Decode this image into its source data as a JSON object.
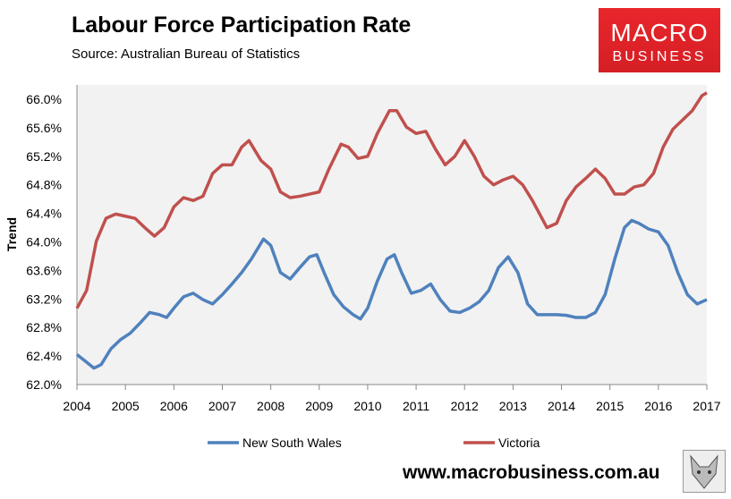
{
  "header": {
    "title": "Labour Force Participation Rate",
    "source": "Source: Australian Bureau of Statistics"
  },
  "logo": {
    "line1": "MACRO",
    "line2": "BUSINESS",
    "icon": "fox-icon"
  },
  "footer": {
    "url": "www.macrobusiness.com.au"
  },
  "chart_data": {
    "type": "line",
    "title": "Labour Force Participation Rate",
    "xlabel": "",
    "ylabel": "Trend",
    "ylim": [
      62.0,
      66.2
    ],
    "xlim": [
      2004,
      2017
    ],
    "yticks": [
      "62.0%",
      "62.4%",
      "62.8%",
      "63.2%",
      "63.6%",
      "64.0%",
      "64.4%",
      "64.8%",
      "65.2%",
      "65.6%",
      "66.0%"
    ],
    "xticks": [
      "2004",
      "2005",
      "2006",
      "2007",
      "2008",
      "2009",
      "2010",
      "2011",
      "2012",
      "2013",
      "2014",
      "2015",
      "2016",
      "2017"
    ],
    "legend": "bottom",
    "grid": false,
    "series": [
      {
        "name": "New South Wales",
        "color": "#4f81bd",
        "points": [
          [
            2004.0,
            62.42
          ],
          [
            2004.15,
            62.34
          ],
          [
            2004.35,
            62.23
          ],
          [
            2004.5,
            62.28
          ],
          [
            2004.7,
            62.5
          ],
          [
            2004.9,
            62.63
          ],
          [
            2005.1,
            62.72
          ],
          [
            2005.3,
            62.86
          ],
          [
            2005.5,
            63.01
          ],
          [
            2005.7,
            62.98
          ],
          [
            2005.85,
            62.94
          ],
          [
            2006.0,
            63.07
          ],
          [
            2006.2,
            63.23
          ],
          [
            2006.4,
            63.28
          ],
          [
            2006.6,
            63.19
          ],
          [
            2006.8,
            63.13
          ],
          [
            2007.0,
            63.26
          ],
          [
            2007.2,
            63.41
          ],
          [
            2007.4,
            63.57
          ],
          [
            2007.6,
            63.76
          ],
          [
            2007.85,
            64.04
          ],
          [
            2008.0,
            63.95
          ],
          [
            2008.2,
            63.57
          ],
          [
            2008.4,
            63.48
          ],
          [
            2008.6,
            63.64
          ],
          [
            2008.8,
            63.79
          ],
          [
            2008.95,
            63.82
          ],
          [
            2009.1,
            63.57
          ],
          [
            2009.3,
            63.26
          ],
          [
            2009.5,
            63.09
          ],
          [
            2009.7,
            62.98
          ],
          [
            2009.85,
            62.92
          ],
          [
            2010.0,
            63.07
          ],
          [
            2010.2,
            63.45
          ],
          [
            2010.4,
            63.76
          ],
          [
            2010.55,
            63.82
          ],
          [
            2010.7,
            63.57
          ],
          [
            2010.9,
            63.28
          ],
          [
            2011.1,
            63.32
          ],
          [
            2011.3,
            63.41
          ],
          [
            2011.5,
            63.19
          ],
          [
            2011.7,
            63.03
          ],
          [
            2011.9,
            63.01
          ],
          [
            2012.1,
            63.07
          ],
          [
            2012.3,
            63.16
          ],
          [
            2012.5,
            63.32
          ],
          [
            2012.7,
            63.64
          ],
          [
            2012.9,
            63.79
          ],
          [
            2013.1,
            63.57
          ],
          [
            2013.3,
            63.13
          ],
          [
            2013.5,
            62.98
          ],
          [
            2013.7,
            62.98
          ],
          [
            2013.9,
            62.98
          ],
          [
            2014.1,
            62.97
          ],
          [
            2014.3,
            62.94
          ],
          [
            2014.5,
            62.94
          ],
          [
            2014.7,
            63.01
          ],
          [
            2014.9,
            63.26
          ],
          [
            2015.1,
            63.76
          ],
          [
            2015.3,
            64.2
          ],
          [
            2015.45,
            64.3
          ],
          [
            2015.6,
            64.26
          ],
          [
            2015.8,
            64.18
          ],
          [
            2016.0,
            64.14
          ],
          [
            2016.2,
            63.95
          ],
          [
            2016.4,
            63.57
          ],
          [
            2016.6,
            63.26
          ],
          [
            2016.8,
            63.13
          ],
          [
            2017.0,
            63.19
          ]
        ]
      },
      {
        "name": "Victoria",
        "color": "#c0504d",
        "points": [
          [
            2004.0,
            63.07
          ],
          [
            2004.2,
            63.32
          ],
          [
            2004.4,
            64.01
          ],
          [
            2004.6,
            64.33
          ],
          [
            2004.8,
            64.39
          ],
          [
            2005.0,
            64.36
          ],
          [
            2005.2,
            64.33
          ],
          [
            2005.4,
            64.2
          ],
          [
            2005.6,
            64.08
          ],
          [
            2005.8,
            64.2
          ],
          [
            2006.0,
            64.49
          ],
          [
            2006.2,
            64.62
          ],
          [
            2006.4,
            64.58
          ],
          [
            2006.6,
            64.64
          ],
          [
            2006.8,
            64.96
          ],
          [
            2007.0,
            65.08
          ],
          [
            2007.2,
            65.08
          ],
          [
            2007.4,
            65.33
          ],
          [
            2007.55,
            65.42
          ],
          [
            2007.8,
            65.14
          ],
          [
            2008.0,
            65.02
          ],
          [
            2008.2,
            64.7
          ],
          [
            2008.4,
            64.62
          ],
          [
            2008.6,
            64.64
          ],
          [
            2008.8,
            64.67
          ],
          [
            2009.0,
            64.7
          ],
          [
            2009.2,
            65.02
          ],
          [
            2009.45,
            65.37
          ],
          [
            2009.6,
            65.33
          ],
          [
            2009.8,
            65.17
          ],
          [
            2010.0,
            65.2
          ],
          [
            2010.2,
            65.52
          ],
          [
            2010.45,
            65.84
          ],
          [
            2010.6,
            65.84
          ],
          [
            2010.8,
            65.61
          ],
          [
            2011.0,
            65.52
          ],
          [
            2011.2,
            65.55
          ],
          [
            2011.4,
            65.3
          ],
          [
            2011.6,
            65.08
          ],
          [
            2011.8,
            65.2
          ],
          [
            2012.0,
            65.42
          ],
          [
            2012.2,
            65.2
          ],
          [
            2012.4,
            64.92
          ],
          [
            2012.6,
            64.8
          ],
          [
            2012.8,
            64.87
          ],
          [
            2013.0,
            64.92
          ],
          [
            2013.2,
            64.8
          ],
          [
            2013.4,
            64.58
          ],
          [
            2013.7,
            64.2
          ],
          [
            2013.9,
            64.26
          ],
          [
            2014.1,
            64.58
          ],
          [
            2014.3,
            64.77
          ],
          [
            2014.5,
            64.89
          ],
          [
            2014.7,
            65.02
          ],
          [
            2014.9,
            64.89
          ],
          [
            2015.1,
            64.67
          ],
          [
            2015.3,
            64.67
          ],
          [
            2015.5,
            64.77
          ],
          [
            2015.7,
            64.8
          ],
          [
            2015.9,
            64.96
          ],
          [
            2016.1,
            65.33
          ],
          [
            2016.3,
            65.58
          ],
          [
            2016.5,
            65.71
          ],
          [
            2016.7,
            65.84
          ],
          [
            2016.9,
            66.05
          ],
          [
            2017.0,
            66.09
          ]
        ]
      }
    ]
  }
}
